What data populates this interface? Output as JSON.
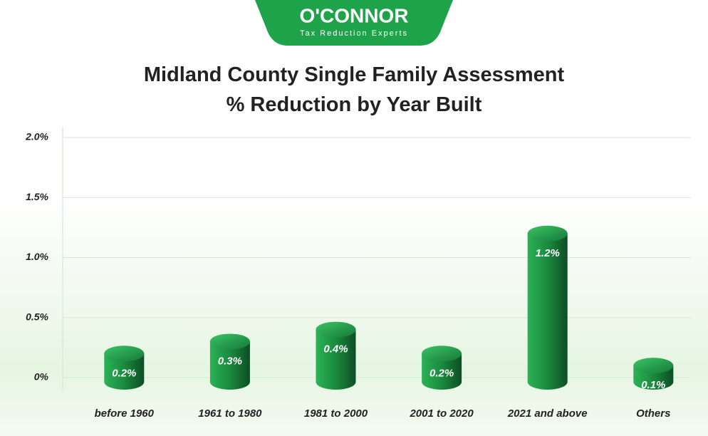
{
  "logo": {
    "name": "O'CONNOR",
    "tagline": "Tax Reduction Experts"
  },
  "chart_data": {
    "type": "bar",
    "title": "Midland County Single Family Assessment % Reduction by Year Built",
    "categories": [
      "before 1960",
      "1961 to 1980",
      "1981 to 2000",
      "2001 to 2020",
      "2021 and above",
      "Others"
    ],
    "values": [
      0.2,
      0.3,
      0.4,
      0.2,
      1.2,
      0.1
    ],
    "value_labels": [
      "0.2%",
      "0.3%",
      "0.4%",
      "0.2%",
      "1.2%",
      "0.1%"
    ],
    "color": "#1f9a48",
    "ylim": [
      0,
      2.0
    ],
    "yticks": [
      {
        "value": 0,
        "label": "0%"
      },
      {
        "value": 0.5,
        "label": "0.5%"
      },
      {
        "value": 1.0,
        "label": "1.0%"
      },
      {
        "value": 1.5,
        "label": "1.5%"
      },
      {
        "value": 2.0,
        "label": "2.0%"
      }
    ],
    "grid": true
  }
}
